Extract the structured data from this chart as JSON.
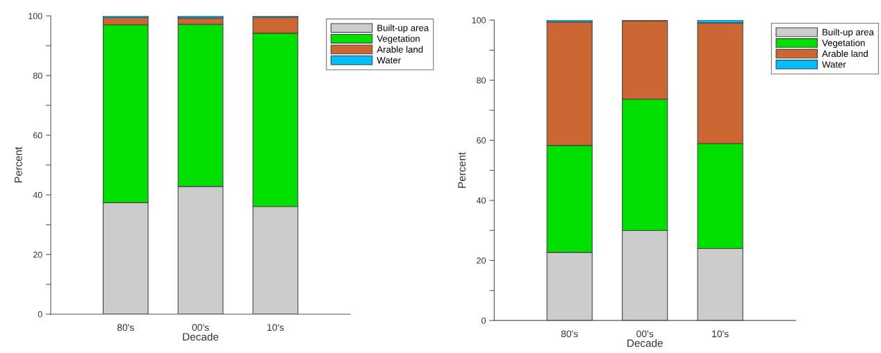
{
  "chart_data": [
    {
      "type": "bar",
      "stacked": true,
      "xlabel": "Decade",
      "ylabel": "Percent",
      "categories": [
        "80's",
        "00's",
        "10's"
      ],
      "ylim": [
        0,
        100
      ],
      "yticks": [
        0,
        {
          "value": 10,
          "label": null
        },
        20,
        {
          "value": 30,
          "label": null
        },
        40,
        {
          "value": 50,
          "label": null
        },
        60,
        {
          "value": 70,
          "label": null
        },
        80,
        {
          "value": 90,
          "label": null
        },
        100
      ],
      "grid": false,
      "legend": "top right",
      "series": [
        {
          "name": "Built-up area",
          "color": "#cccccc",
          "values": [
            37.4,
            42.8,
            36.1
          ]
        },
        {
          "name": "Vegetation",
          "color": "#00e000",
          "values": [
            59.6,
            54.4,
            58.1
          ]
        },
        {
          "name": "Arable land",
          "color": "#cc6633",
          "values": [
            2.4,
            2.1,
            5.3
          ]
        },
        {
          "name": "Water",
          "color": "#00bfff",
          "values": [
            0.6,
            0.7,
            0.5
          ]
        }
      ]
    },
    {
      "type": "bar",
      "stacked": true,
      "xlabel": "Decade",
      "ylabel": "Percent",
      "categories": [
        "80's",
        "00's",
        "10's"
      ],
      "ylim": [
        0,
        100
      ],
      "yticks": [
        0,
        {
          "value": 10,
          "label": null
        },
        20,
        {
          "value": 30,
          "label": null
        },
        40,
        {
          "value": 50,
          "label": null
        },
        60,
        {
          "value": 70,
          "label": null
        },
        80,
        {
          "value": 90,
          "label": null
        },
        100
      ],
      "grid": false,
      "legend": "top right",
      "series": [
        {
          "name": "Built-up area",
          "color": "#cccccc",
          "values": [
            22.7,
            30.0,
            24.0
          ]
        },
        {
          "name": "Vegetation",
          "color": "#00e000",
          "values": [
            35.6,
            43.7,
            34.9
          ]
        },
        {
          "name": "Arable land",
          "color": "#cc6633",
          "values": [
            41.1,
            26.1,
            40.2
          ]
        },
        {
          "name": "Water",
          "color": "#00bfff",
          "values": [
            0.6,
            null,
            0.9
          ]
        }
      ]
    }
  ]
}
